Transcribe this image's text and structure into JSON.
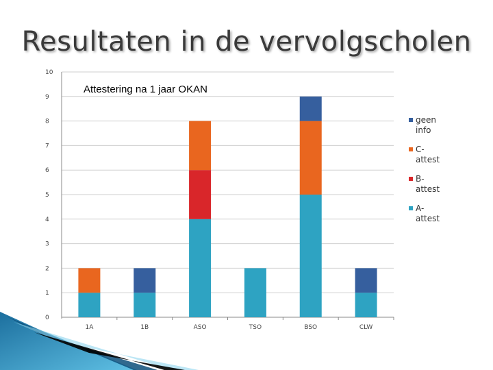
{
  "slide": {
    "title": "Resultaten in de vervolgscholen"
  },
  "chart_data": {
    "type": "bar",
    "stacked": true,
    "title": "Attestering na 1 jaar OKAN",
    "categories": [
      "1A",
      "1B",
      "ASO",
      "TSO",
      "BSO",
      "CLW"
    ],
    "ylim": [
      0,
      10
    ],
    "yticks": [
      0,
      1,
      2,
      3,
      4,
      5,
      6,
      7,
      8,
      9,
      10
    ],
    "grid": true,
    "legend_position": "right",
    "series": [
      {
        "name": "A-attest",
        "label_lines": [
          "A-",
          "attest"
        ],
        "color": "#2ea3c2",
        "values": [
          1,
          1,
          4,
          2,
          5,
          1
        ]
      },
      {
        "name": "B-attest",
        "label_lines": [
          "B-",
          "attest"
        ],
        "color": "#d9262a",
        "values": [
          0,
          0,
          2,
          0,
          0,
          0
        ]
      },
      {
        "name": "C-attest",
        "label_lines": [
          "C-",
          "attest"
        ],
        "color": "#e9661f",
        "values": [
          1,
          0,
          2,
          0,
          3,
          0
        ]
      },
      {
        "name": "geen info",
        "label_lines": [
          "geen",
          "info"
        ],
        "color": "#365f9e",
        "values": [
          0,
          1,
          0,
          0,
          1,
          1
        ]
      }
    ]
  }
}
